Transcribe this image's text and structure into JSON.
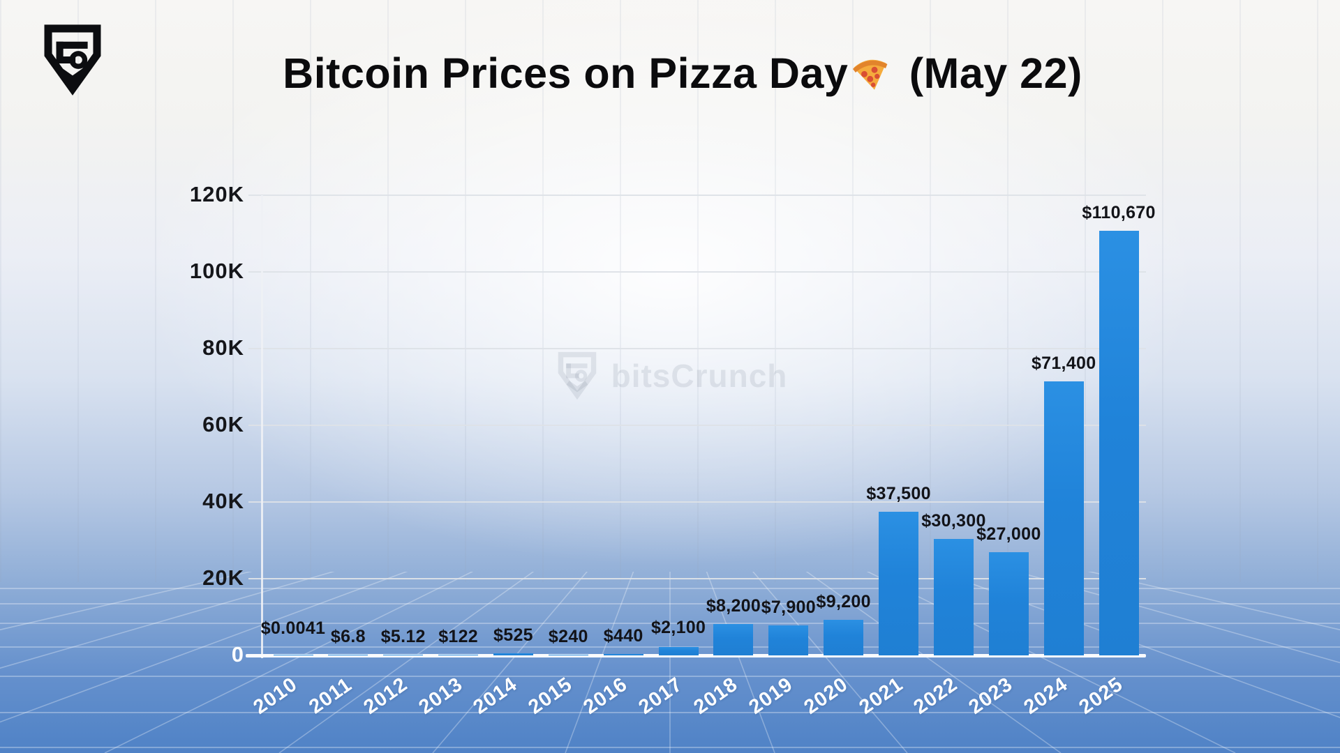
{
  "header": {
    "logo": "bitscrunch-shield-logo",
    "title_prefix": "Bitcoin Prices on Pizza Day",
    "pizza_icon": "pizza-emoji",
    "title_suffix": " (May 22)"
  },
  "watermark": {
    "text": "bitsCrunch"
  },
  "chart_data": {
    "type": "bar",
    "title": "Bitcoin Prices on Pizza Day 🍕 (May 22)",
    "categories": [
      "2010",
      "2011",
      "2012",
      "2013",
      "2014",
      "2015",
      "2016",
      "2017",
      "2018",
      "2019",
      "2020",
      "2021",
      "2022",
      "2023",
      "2024",
      "2025"
    ],
    "values": [
      0.0041,
      6.8,
      5.12,
      122,
      525,
      240,
      440,
      2100,
      8200,
      7900,
      9200,
      37500,
      30300,
      27000,
      71400,
      110670
    ],
    "value_labels": [
      "$0.0041",
      "$6.8",
      "$5.12",
      "$122",
      "$525",
      "$240",
      "$440",
      "$2,100",
      "$8,200",
      "$7,900",
      "$9,200",
      "$37,500",
      "$30,300",
      "$27,000",
      "$71,400",
      "$110,670"
    ],
    "xlabel": "",
    "ylabel": "",
    "y_ticks": [
      {
        "value": 0,
        "label": "0"
      },
      {
        "value": 20000,
        "label": "20K"
      },
      {
        "value": 40000,
        "label": "40K"
      },
      {
        "value": 60000,
        "label": "60K"
      },
      {
        "value": 80000,
        "label": "80K"
      },
      {
        "value": 100000,
        "label": "100K"
      },
      {
        "value": 120000,
        "label": "120K"
      }
    ],
    "ylim": [
      0,
      120000
    ],
    "grid": true,
    "legend": false,
    "bar_color_top": "#2B90E3",
    "bar_color": "#2187DD",
    "value_label_color": "#121318",
    "x_tick_color": "#FFFFFF"
  }
}
